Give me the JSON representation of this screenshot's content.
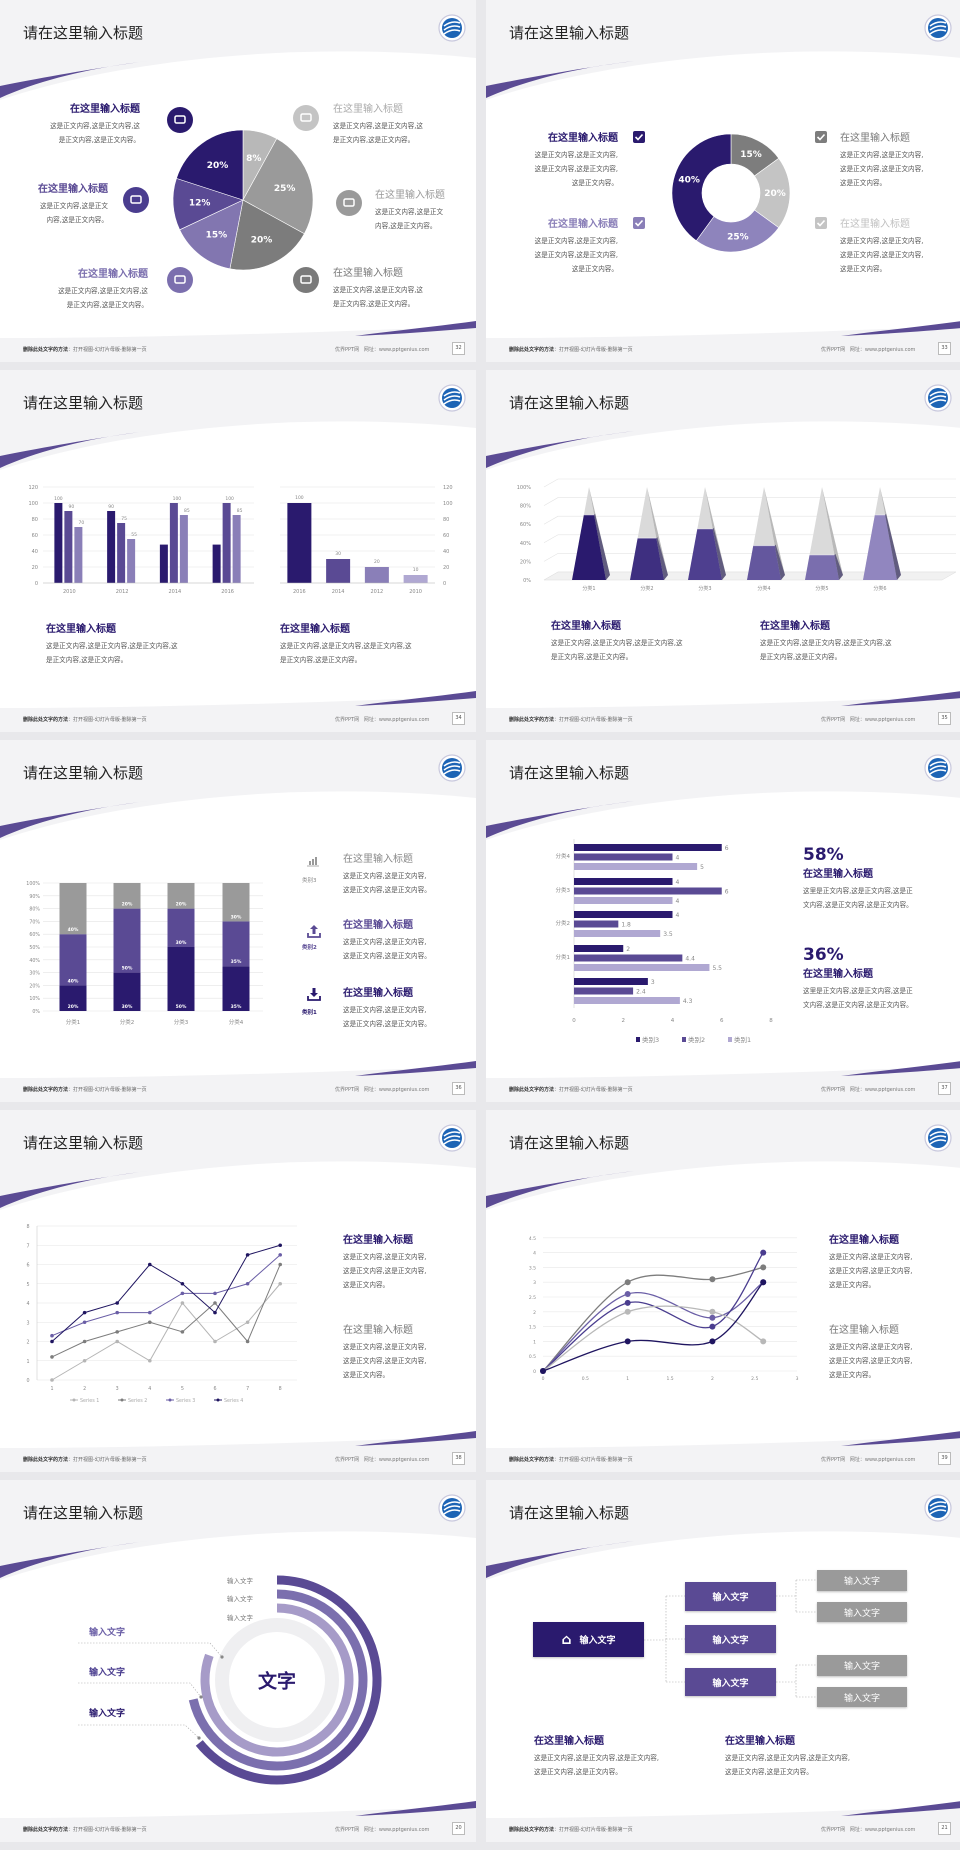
{
  "common": {
    "title": "请在这里输入标题",
    "footer_left_bold": "删除此处文字的方法",
    "footer_left": "：打开视图-幻灯片母版-删除第一页",
    "footer_brand": "优界PPT网",
    "footer_url": "网址：www.pptgenius.com"
  },
  "colors": {
    "navy": "#2a1a6e",
    "purple": "#5a4a94",
    "lilac": "#8a7fb8",
    "pale": "#b0a8d2",
    "gray": "#7d7d7d",
    "lightgray": "#c2c2c2"
  },
  "slides": [
    {
      "page": "32",
      "blocks": [
        {
          "title": "在这里输入标题",
          "lines": [
            "这是正文内容,这是正文内容,这",
            "是正文内容,这是正文内容。"
          ]
        },
        {
          "title": "在这里输入标题",
          "lines": [
            "这是正文内容,这是正文",
            "内容,这是正文内容。"
          ]
        },
        {
          "title": "在这里输入标题",
          "lines": [
            "这是正文内容,这是正文内容,这",
            "是正文内容,这是正文内容。"
          ]
        },
        {
          "title": "在这里输入标题",
          "lines": [
            "这是正文内容,这是正文内容,这",
            "是正文内容,这是正文内容。"
          ]
        },
        {
          "title": "在这里输入标题",
          "lines": [
            "这是正文内容,这是正文",
            "内容,这是正文内容。"
          ]
        },
        {
          "title": "在这里输入标题",
          "lines": [
            "这是正文内容,这是正文内容,这",
            "是正文内容,这是正文内容。"
          ]
        }
      ],
      "icons": [
        "monitor-icon",
        "car-icon",
        "book-icon",
        "phone-icon",
        "binoculars-icon",
        "bicycle-icon"
      ]
    },
    {
      "page": "33",
      "blocks": [
        {
          "title": "在这里输入标题",
          "lines": [
            "这是正文内容,这是正文内容,",
            "这是正文内容,这是正文内容,",
            "这是正文内容。"
          ]
        },
        {
          "title": "在这里输入标题",
          "lines": [
            "这是正文内容,这是正文内容,",
            "这是正文内容,这是正文内容,",
            "这是正文内容。"
          ]
        },
        {
          "title": "在这里输入标题",
          "lines": [
            "这是正文内容,这是正文内容,",
            "这是正文内容,这是正文内容,",
            "这是正文内容。"
          ]
        },
        {
          "title": "在这里输入标题",
          "lines": [
            "这是正文内容,这是正文内容,",
            "这是正文内容,这是正文内容,",
            "这是正文内容。"
          ]
        }
      ]
    },
    {
      "page": "34",
      "blocks": [
        {
          "title": "在这里输入标题",
          "lines": [
            "这是正文内容,这是正文内容,这是正文内容,这",
            "是正文内容,这是正文内容。"
          ]
        },
        {
          "title": "在这里输入标题",
          "lines": [
            "这是正文内容,这是正文内容,这是正文内容,这",
            "是正文内容,这是正文内容。"
          ]
        }
      ]
    },
    {
      "page": "35",
      "blocks": [
        {
          "title": "在这里输入标题",
          "lines": [
            "这是正文内容,这是正文内容,这是正文内容,这",
            "是正文内容,这是正文内容。"
          ]
        },
        {
          "title": "在这里输入标题",
          "lines": [
            "这是正文内容,这是正文内容,这是正文内容,这",
            "是正文内容,这是正文内容。"
          ]
        }
      ]
    },
    {
      "page": "36",
      "blocks": [
        {
          "title": "在这里输入标题",
          "label": "类别3",
          "lines": [
            "这是正文内容,这是正文内容,",
            "这是正文内容,这是正文内容。"
          ]
        },
        {
          "title": "在这里输入标题",
          "label": "类别2",
          "lines": [
            "这是正文内容,这是正文内容,",
            "这是正文内容,这是正文内容。"
          ]
        },
        {
          "title": "在这里输入标题",
          "label": "类别1",
          "lines": [
            "这是正文内容,这是正文内容,",
            "这是正文内容,这是正文内容。"
          ]
        }
      ]
    },
    {
      "page": "37",
      "blocks": [
        {
          "stat": "58%",
          "title": "在这里输入标题",
          "lines": [
            "这里是正文内容,这是正文内容,这是正",
            "文内容,这是正文内容,这是正文内容。"
          ]
        },
        {
          "stat": "36%",
          "title": "在这里输入标题",
          "lines": [
            "这里是正文内容,这是正文内容,这是正",
            "文内容,这是正文内容,这是正文内容。"
          ]
        }
      ]
    },
    {
      "page": "38",
      "blocks": [
        {
          "title": "在这里输入标题",
          "lines": [
            "这是正文内容,这是正文内容,",
            "这是正文内容,这是正文内容,",
            "这是正文内容。"
          ]
        },
        {
          "title": "在这里输入标题",
          "lines": [
            "这是正文内容,这是正文内容,",
            "这是正文内容,这是正文内容,",
            "这是正文内容。"
          ]
        }
      ]
    },
    {
      "page": "39",
      "blocks": [
        {
          "title": "在这里输入标题",
          "lines": [
            "这是正文内容,这是正文内容,",
            "这是正文内容,这是正文内容,",
            "这是正文内容。"
          ]
        },
        {
          "title": "在这里输入标题",
          "lines": [
            "这是正文内容,这是正文内容,",
            "这是正文内容,这是正文内容,",
            "这是正文内容。"
          ]
        }
      ]
    },
    {
      "page": "20",
      "center": "文字",
      "ring_labels": [
        "输入文字",
        "输入文字",
        "输入文字"
      ],
      "side_labels": [
        "输入文字",
        "输入文字",
        "输入文字"
      ]
    },
    {
      "page": "21",
      "root": "输入文字",
      "branches": [
        "输入文字",
        "输入文字",
        "输入文字"
      ],
      "leaves": [
        "输入文字",
        "输入文字",
        "输入文字",
        "输入文字"
      ],
      "blocks": [
        {
          "title": "在这里输入标题",
          "lines": [
            "这是正文内容,这是正文内容,这是正文内容,",
            "这是正文内容,这是正文内容。"
          ]
        },
        {
          "title": "在这里输入标题",
          "lines": [
            "这是正文内容,这是正文内容,这是正文内容,",
            "这是正文内容,这是正文内容。"
          ]
        }
      ]
    }
  ],
  "chart_data": [
    {
      "type": "pie",
      "values": [
        8,
        25,
        20,
        15,
        12,
        20
      ],
      "labels": [
        "8%",
        "25%",
        "20%",
        "15%",
        "12%",
        "20%"
      ],
      "colors": [
        "#b8b8b8",
        "#9a9a9a",
        "#7c7c7c",
        "#8276b0",
        "#5a4a94",
        "#2a1a6e"
      ]
    },
    {
      "type": "pie",
      "donut": true,
      "values": [
        15,
        20,
        25,
        40
      ],
      "labels": [
        "15%",
        "20%",
        "25%",
        "40%"
      ],
      "colors": [
        "#7d7d7d",
        "#c4c4c4",
        "#8e84bc",
        "#2a1a6e"
      ]
    },
    {
      "type": "bar",
      "categories": [
        "2010",
        "2012",
        "2014",
        "2016"
      ],
      "ylim": [
        0,
        120
      ],
      "yticks": [
        "0",
        "20",
        "40",
        "60",
        "80",
        "100",
        "120"
      ],
      "series": [
        {
          "values": [
            100,
            90,
            48,
            48
          ],
          "labels": [
            "100",
            "90",
            "",
            ""
          ]
        },
        {
          "values": [
            90,
            75,
            100,
            100
          ],
          "labels": [
            "90",
            "75",
            "100",
            "100"
          ]
        },
        {
          "values": [
            70,
            55,
            85,
            85
          ],
          "labels": [
            "70",
            "55",
            "85",
            "85"
          ]
        }
      ],
      "colors": [
        "#2a1a6e",
        "#5a4a94",
        "#8a7fb8"
      ],
      "grid": true
    },
    {
      "type": "bar",
      "categories": [
        "2016",
        "2014",
        "2012",
        "2010"
      ],
      "ylim": [
        0,
        120
      ],
      "yticks": [
        "0",
        "20",
        "40",
        "60",
        "80",
        "100",
        "120"
      ],
      "yaxis": "right",
      "values": [
        100,
        30,
        20,
        10
      ],
      "labels": [
        "100",
        "30",
        "20",
        "10"
      ],
      "colors": [
        "#2a1a6e",
        "#5a4a94",
        "#8a7fb8",
        "#b0a8d2"
      ],
      "grid": true
    },
    {
      "type": "bar",
      "style": "3d-pyramid",
      "categories": [
        "分类1",
        "分类2",
        "分类3",
        "分类4",
        "分类5",
        "分类6"
      ],
      "ylim": [
        0,
        100
      ],
      "yticks": [
        "0%",
        "20%",
        "40%",
        "60%",
        "80%",
        "100%"
      ],
      "values": [
        70,
        45,
        55,
        37,
        27,
        70
      ],
      "colors": [
        "#2a1a6e",
        "#3e2f80",
        "#4e3f8f",
        "#64579e",
        "#7a6eae",
        "#9186bf"
      ],
      "grid": true
    },
    {
      "type": "bar",
      "stacked": true,
      "categories": [
        "分类1",
        "分类2",
        "分类3",
        "分类4"
      ],
      "ylim": [
        0,
        100
      ],
      "yticks": [
        "0%",
        "10%",
        "20%",
        "30%",
        "40%",
        "50%",
        "60%",
        "70%",
        "80%",
        "90%",
        "100%"
      ],
      "series": [
        {
          "name": "类别1",
          "values": [
            20,
            30,
            50,
            35
          ],
          "labels": [
            "20%",
            "30%",
            "50%",
            "35%"
          ]
        },
        {
          "name": "类别2",
          "values": [
            40,
            50,
            30,
            35
          ],
          "labels": [
            "40%",
            "50%",
            "30%",
            "35%"
          ]
        },
        {
          "name": "类别3",
          "values": [
            40,
            20,
            20,
            30
          ],
          "labels": [
            "40%",
            "20%",
            "20%",
            "30%"
          ]
        }
      ],
      "colors": [
        "#2a1a6e",
        "#5a4a94",
        "#9a9a9a"
      ],
      "grid": true
    },
    {
      "type": "bar",
      "orientation": "horizontal",
      "categories": [
        "分类4",
        "分类3",
        "分类2",
        "分类1",
        ""
      ],
      "xlim": [
        0,
        8
      ],
      "xticks": [
        "0",
        "2",
        "4",
        "6",
        "8"
      ],
      "series": [
        {
          "name": "类别3",
          "values": [
            6,
            4,
            4,
            2,
            3
          ],
          "labels": [
            "6",
            "4",
            "4",
            "2",
            "3"
          ]
        },
        {
          "name": "类别2",
          "values": [
            4,
            6,
            1.8,
            4.4,
            2.4
          ],
          "labels": [
            "4",
            "6",
            "1.8",
            "4.4",
            "2.4"
          ]
        },
        {
          "name": "类别1",
          "values": [
            5,
            4,
            3.5,
            5.5,
            4.3
          ],
          "labels": [
            "5",
            "4",
            "3.5",
            "5.5",
            "4.3"
          ]
        }
      ],
      "colors": [
        "#2a1a6e",
        "#5a4a94",
        "#b0a8d2"
      ],
      "legend": "bottom"
    },
    {
      "type": "line",
      "x": [
        1,
        2,
        3,
        4,
        5,
        6,
        7,
        8
      ],
      "xticks": [
        "1",
        "2",
        "3",
        "4",
        "5",
        "6",
        "7",
        "8"
      ],
      "ylim": [
        0,
        8
      ],
      "yticks": [
        "0",
        "1",
        "2",
        "3",
        "4",
        "5",
        "6",
        "7",
        "8"
      ],
      "series": [
        {
          "name": "Series 1",
          "values": [
            0,
            1,
            2,
            1,
            4,
            2,
            3,
            5
          ]
        },
        {
          "name": "Series 2",
          "values": [
            1.2,
            2,
            2.5,
            3,
            2.5,
            4,
            2,
            6
          ]
        },
        {
          "name": "Series 3",
          "values": [
            2.3,
            3,
            3.5,
            3.5,
            4.5,
            4.5,
            5,
            6.5
          ]
        },
        {
          "name": "Series 4",
          "values": [
            2,
            3.5,
            4,
            6,
            5,
            3.5,
            6.5,
            7
          ]
        }
      ],
      "colors": [
        "#b5b5b5",
        "#7d7d7d",
        "#6a5ea6",
        "#1f1560"
      ],
      "legend": "bottom",
      "grid": true
    },
    {
      "type": "scatter",
      "smooth": true,
      "xlim": [
        0,
        3
      ],
      "ylim": [
        0,
        4.5
      ],
      "xticks": [
        "0",
        "0.5",
        "1",
        "1.5",
        "2",
        "2.5",
        "3"
      ],
      "yticks": [
        "0",
        "0.5",
        "1",
        "1.5",
        "2",
        "2.5",
        "3",
        "3.5",
        "4",
        "4.5"
      ],
      "x": [
        0,
        1,
        2,
        2.6
      ],
      "series": [
        {
          "values": [
            0,
            3,
            3.1,
            3.5
          ]
        },
        {
          "values": [
            0,
            2.6,
            1.8,
            3
          ]
        },
        {
          "values": [
            0,
            2.3,
            1.5,
            4
          ]
        },
        {
          "values": [
            0,
            2,
            2,
            1
          ]
        },
        {
          "values": [
            0,
            1,
            1,
            3
          ]
        }
      ],
      "colors": [
        "#7d7d7d",
        "#6a5ea6",
        "#4a3d8f",
        "#b8b8b8",
        "#1f1560"
      ],
      "grid": true
    }
  ]
}
